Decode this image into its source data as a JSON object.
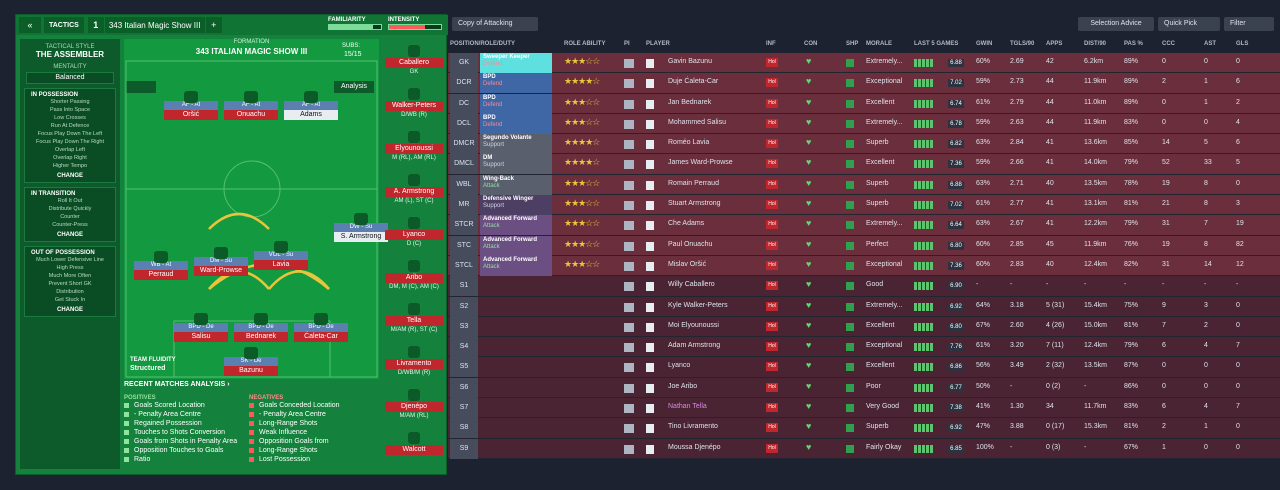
{
  "left": {
    "back": "«",
    "tab": "TACTICS",
    "slot": "1",
    "name": "343 Italian Magic Show III",
    "add": "+",
    "familiarity": {
      "label": "FAMILIARITY",
      "fill": 0.85,
      "color": "#7ddc9a"
    },
    "intensity": {
      "label": "INTENSITY",
      "fill": 0.7,
      "color": "#ff5a5a"
    },
    "style_title": "TACTICAL STYLE",
    "style": "THE ASSEMBLER",
    "mentality_title": "MENTALITY",
    "mentality": "Balanced",
    "possession": {
      "title": "IN POSSESSION",
      "items": [
        "Shorter Passing",
        "Pass Into Space",
        "Low Crosses",
        "Run At Defence",
        "Focus Play Down The Left",
        "Focus Play Down The Right",
        "Overlap Left",
        "Overlap Right",
        "Higher Tempo"
      ],
      "change": "CHANGE"
    },
    "transition": {
      "title": "IN TRANSITION",
      "items": [
        "Roll It Out",
        "Distribute Quickly",
        "Counter",
        "Counter-Press"
      ],
      "change": "CHANGE"
    },
    "oop": {
      "title": "OUT OF POSSESSION",
      "items": [
        "Much Lower Defensive Line",
        "High Press",
        "Much More Often",
        "Prevent Short GK",
        "Distribution",
        "Get Stuck In"
      ],
      "change": "CHANGE"
    },
    "formation_title": "FORMATION",
    "formation": "343 ITALIAN MAGIC SHOW III",
    "subs_label": "SUBS:",
    "subs_count": "15/15",
    "analysis_btn": "Analysis",
    "fluidity_title": "TEAM FLUIDITY",
    "fluidity": "Structured",
    "pitch": [
      {
        "role": "AF - At",
        "name": "Oršić",
        "w": false
      },
      {
        "role": "AF - At",
        "name": "Onuachu",
        "w": false
      },
      {
        "role": "AF - At",
        "name": "Adams",
        "w": true
      },
      {
        "role": "DW - Su",
        "name": "S. Armstrong",
        "w": true
      },
      {
        "role": "WB - At",
        "name": "Perraud",
        "w": false
      },
      {
        "role": "DM - Su",
        "name": "Ward-Prowse",
        "w": false
      },
      {
        "role": "VOL - Su",
        "name": "Lavia",
        "w": false
      },
      {
        "role": "BPD - De",
        "name": "Salisu",
        "w": false
      },
      {
        "role": "BPD - De",
        "name": "Bednarek",
        "w": false
      },
      {
        "role": "BPD - De",
        "name": "Ćaleta-Car",
        "w": false
      },
      {
        "role": "SK - De",
        "name": "Bazunu",
        "w": false
      }
    ],
    "subs": [
      {
        "name": "Caballero",
        "pos": "GK"
      },
      {
        "name": "Walker-Peters",
        "pos": "D/WB (R)"
      },
      {
        "name": "Elyounoussi",
        "pos": "M (RL), AM (RL)"
      },
      {
        "name": "A. Armstrong",
        "pos": "AM (L), ST (C)"
      },
      {
        "name": "Lyanco",
        "pos": "D (C)"
      },
      {
        "name": "Aribo",
        "pos": "DM, M (C), AM (C)"
      },
      {
        "name": "Tella",
        "pos": "M/AM (R), ST (C)"
      },
      {
        "name": "Livramento",
        "pos": "D/WB/M (R)"
      },
      {
        "name": "Djenépo",
        "pos": "M/AM (RL)"
      },
      {
        "name": "Walcott",
        "pos": ""
      }
    ],
    "recent_title": "RECENT MATCHES ANALYSIS ›",
    "positives_title": "POSITIVES",
    "positives": [
      "Goals Scored Location",
      "- Penalty Area Centre",
      "Regained Possession",
      "Touches to Shots Conversion",
      "Goals from Shots in Penalty Area",
      "Opposition Touches to Goals",
      "Ratio"
    ],
    "negatives_title": "NEGATIVES",
    "negatives": [
      "Goals Conceded Location",
      "- Penalty Area Centre",
      "Long-Range Shots",
      "Weak Influence",
      "Opposition Goals from",
      "Long-Range Shots",
      "Lost Possession"
    ]
  },
  "right": {
    "view": "Copy of Attacking",
    "selection_advice": "Selection Advice",
    "quick_pick": "Quick Pick",
    "filter": "Filter",
    "columns": [
      "POSITION/ROLE/DUTY",
      "ROLE ABILITY",
      "PI",
      "PLAYER",
      "INF",
      "CON",
      "SHP",
      "MORALE",
      "LAST 5 GAMES",
      "GWIN",
      "TGLS/90",
      "APPS",
      "DIST/90",
      "PAS %",
      "CCC",
      "AST",
      "GLS"
    ],
    "rows": [
      {
        "code": "GK",
        "role": "Sweeper Keeper",
        "duty": "Defend",
        "stars": "★★★☆☆",
        "player": "Gavin Bazunu",
        "morale": "Extremely...",
        "rating": "6.88",
        "gwin": "60%",
        "tgls": "2.69",
        "apps": "42",
        "dist": "6.2km",
        "pas": "89%",
        "ccc": "0",
        "ast": "0",
        "gls": "0",
        "t": "f",
        "c": "#5fe0e0"
      },
      {
        "code": "DCR",
        "role": "BPD",
        "duty": "Defend",
        "stars": "★★★★☆",
        "player": "Duje Ćaleta-Car",
        "morale": "Exceptional",
        "rating": "7.02",
        "gwin": "59%",
        "tgls": "2.73",
        "apps": "44",
        "dist": "11.9km",
        "pas": "89%",
        "ccc": "2",
        "ast": "1",
        "gls": "6",
        "t": "f",
        "c": "#3f66a5"
      },
      {
        "code": "DC",
        "role": "BPD",
        "duty": "Defend",
        "stars": "★★★☆☆",
        "player": "Jan Bednarek",
        "morale": "Excellent",
        "rating": "6.74",
        "gwin": "61%",
        "tgls": "2.79",
        "apps": "44",
        "dist": "11.0km",
        "pas": "89%",
        "ccc": "0",
        "ast": "1",
        "gls": "2",
        "t": "f",
        "c": "#3f66a5"
      },
      {
        "code": "DCL",
        "role": "BPD",
        "duty": "Defend",
        "stars": "★★★☆☆",
        "player": "Mohammed Salisu",
        "morale": "Extremely...",
        "rating": "6.78",
        "gwin": "59%",
        "tgls": "2.63",
        "apps": "44",
        "dist": "11.9km",
        "pas": "83%",
        "ccc": "0",
        "ast": "0",
        "gls": "4",
        "t": "f",
        "c": "#3f66a5"
      },
      {
        "code": "DMCR",
        "role": "Segundo Volante",
        "duty": "Support",
        "stars": "★★★★☆",
        "player": "Roméo Lavia",
        "morale": "Superb",
        "rating": "6.82",
        "gwin": "63%",
        "tgls": "2.84",
        "apps": "41",
        "dist": "13.6km",
        "pas": "85%",
        "ccc": "14",
        "ast": "5",
        "gls": "6",
        "t": "f",
        "c": "#5a5f6e"
      },
      {
        "code": "DMCL",
        "role": "DM",
        "duty": "Support",
        "stars": "★★★★☆",
        "player": "James Ward-Prowse",
        "morale": "Excellent",
        "rating": "7.36",
        "gwin": "59%",
        "tgls": "2.66",
        "apps": "41",
        "dist": "14.0km",
        "pas": "79%",
        "ccc": "52",
        "ast": "33",
        "gls": "5",
        "t": "f",
        "c": "#5a5f6e"
      },
      {
        "code": "WBL",
        "role": "Wing-Back",
        "duty": "Attack",
        "stars": "★★★☆☆",
        "player": "Romain Perraud",
        "morale": "Superb",
        "rating": "6.88",
        "gwin": "63%",
        "tgls": "2.71",
        "apps": "40",
        "dist": "13.5km",
        "pas": "78%",
        "ccc": "19",
        "ast": "8",
        "gls": "0",
        "t": "f",
        "c": "#5a5f6e"
      },
      {
        "code": "MR",
        "role": "Defensive Winger",
        "duty": "Support",
        "stars": "★★★☆☆",
        "player": "Stuart Armstrong",
        "morale": "Superb",
        "rating": "7.02",
        "gwin": "61%",
        "tgls": "2.77",
        "apps": "41",
        "dist": "13.1km",
        "pas": "81%",
        "ccc": "21",
        "ast": "8",
        "gls": "3",
        "t": "f",
        "c": "#4d3e63"
      },
      {
        "code": "STCR",
        "role": "Advanced Forward",
        "duty": "Attack",
        "stars": "★★★☆☆",
        "player": "Che Adams",
        "morale": "Extremely...",
        "rating": "6.64",
        "gwin": "63%",
        "tgls": "2.67",
        "apps": "41",
        "dist": "12.2km",
        "pas": "79%",
        "ccc": "31",
        "ast": "7",
        "gls": "19",
        "t": "f",
        "c": "#6b4f82"
      },
      {
        "code": "STC",
        "role": "Advanced Forward",
        "duty": "Attack",
        "stars": "★★★☆☆",
        "player": "Paul Onuachu",
        "morale": "Perfect",
        "rating": "6.80",
        "gwin": "60%",
        "tgls": "2.85",
        "apps": "45",
        "dist": "11.9km",
        "pas": "76%",
        "ccc": "19",
        "ast": "8",
        "gls": "82",
        "t": "f",
        "c": "#6b4f82"
      },
      {
        "code": "STCL",
        "role": "Advanced Forward",
        "duty": "Attack",
        "stars": "★★★☆☆",
        "player": "Mislav Oršić",
        "morale": "Exceptional",
        "rating": "7.36",
        "gwin": "60%",
        "tgls": "2.83",
        "apps": "40",
        "dist": "12.4km",
        "pas": "82%",
        "ccc": "31",
        "ast": "14",
        "gls": "12",
        "t": "f",
        "c": "#6b4f82"
      },
      {
        "code": "S1",
        "role": "",
        "duty": "",
        "stars": "",
        "player": "Willy Caballero",
        "morale": "Good",
        "rating": "6.90",
        "gwin": "-",
        "tgls": "-",
        "apps": "-",
        "dist": "-",
        "pas": "-",
        "ccc": "-",
        "ast": "-",
        "gls": "-",
        "t": "s",
        "c": ""
      },
      {
        "code": "S2",
        "role": "",
        "duty": "",
        "stars": "",
        "player": "Kyle Walker-Peters",
        "morale": "Extremely...",
        "rating": "6.92",
        "gwin": "64%",
        "tgls": "3.18",
        "apps": "5 (31)",
        "dist": "15.4km",
        "pas": "75%",
        "ccc": "9",
        "ast": "3",
        "gls": "0",
        "t": "s",
        "c": ""
      },
      {
        "code": "S3",
        "role": "",
        "duty": "",
        "stars": "",
        "player": "Moi Elyounoussi",
        "morale": "Excellent",
        "rating": "6.80",
        "gwin": "67%",
        "tgls": "2.60",
        "apps": "4 (26)",
        "dist": "15.0km",
        "pas": "81%",
        "ccc": "7",
        "ast": "2",
        "gls": "0",
        "t": "s",
        "c": ""
      },
      {
        "code": "S4",
        "role": "",
        "duty": "",
        "stars": "",
        "player": "Adam Armstrong",
        "morale": "Exceptional",
        "rating": "7.76",
        "gwin": "61%",
        "tgls": "3.20",
        "apps": "7 (11)",
        "dist": "12.4km",
        "pas": "79%",
        "ccc": "6",
        "ast": "4",
        "gls": "7",
        "t": "s",
        "c": ""
      },
      {
        "code": "S5",
        "role": "",
        "duty": "",
        "stars": "",
        "player": "Lyanco",
        "morale": "Excellent",
        "rating": "6.86",
        "gwin": "56%",
        "tgls": "3.49",
        "apps": "2 (32)",
        "dist": "13.5km",
        "pas": "87%",
        "ccc": "0",
        "ast": "0",
        "gls": "0",
        "t": "s",
        "c": ""
      },
      {
        "code": "S6",
        "role": "",
        "duty": "",
        "stars": "",
        "player": "Joe Aribo",
        "morale": "Poor",
        "rating": "6.77",
        "gwin": "50%",
        "tgls": "-",
        "apps": "0 (2)",
        "dist": "-",
        "pas": "86%",
        "ccc": "0",
        "ast": "0",
        "gls": "0",
        "t": "s",
        "c": ""
      },
      {
        "code": "S7",
        "role": "",
        "duty": "",
        "stars": "",
        "player": "Nathan Tella",
        "morale": "Very Good",
        "rating": "7.38",
        "gwin": "41%",
        "tgls": "1.30",
        "apps": "34",
        "dist": "11.7km",
        "pas": "83%",
        "ccc": "6",
        "ast": "4",
        "gls": "7",
        "t": "s",
        "c": ""
      },
      {
        "code": "S8",
        "role": "",
        "duty": "",
        "stars": "",
        "player": "Tino Livramento",
        "morale": "Superb",
        "rating": "6.92",
        "gwin": "47%",
        "tgls": "3.88",
        "apps": "0 (17)",
        "dist": "15.3km",
        "pas": "81%",
        "ccc": "2",
        "ast": "1",
        "gls": "0",
        "t": "s",
        "c": ""
      },
      {
        "code": "S9",
        "role": "",
        "duty": "",
        "stars": "",
        "player": "Moussa Djenépo",
        "morale": "Fairly Okay",
        "rating": "6.85",
        "gwin": "100%",
        "tgls": "-",
        "apps": "0 (3)",
        "dist": "-",
        "pas": "67%",
        "ccc": "1",
        "ast": "0",
        "gls": "0",
        "t": "s",
        "c": ""
      }
    ]
  }
}
